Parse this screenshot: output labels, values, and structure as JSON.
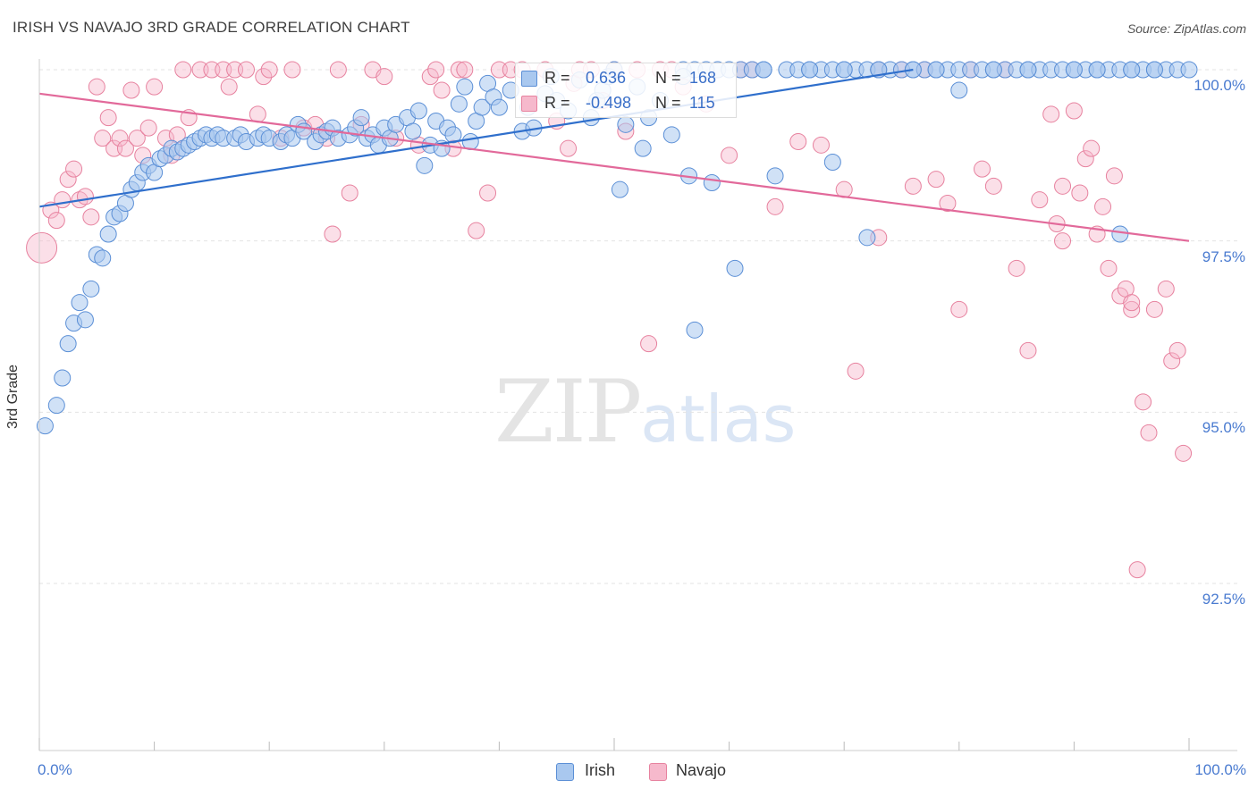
{
  "header": {
    "title": "IRISH VS NAVAJO 3RD GRADE CORRELATION CHART",
    "source": "Source: ZipAtlas.com"
  },
  "watermark": {
    "zip": "ZIP",
    "atlas": "atlas"
  },
  "legend": {
    "r_label": "R =",
    "n_label": "N =",
    "rows": [
      {
        "r": "0.636",
        "n": "168",
        "fill": "#a9c8ef",
        "stroke": "#5b8fd6"
      },
      {
        "r": "-0.498",
        "n": "115",
        "fill": "#f6b9cc",
        "stroke": "#e7829f"
      }
    ]
  },
  "bottom_legend": [
    {
      "label": "Irish",
      "fill": "#a9c8ef",
      "stroke": "#5b8fd6"
    },
    {
      "label": "Navajo",
      "fill": "#f6b9cc",
      "stroke": "#e7829f"
    }
  ],
  "colors": {
    "irish_line": "#2f6fcc",
    "navajo_line": "#e2699a",
    "tick_text": "#4a7bd0"
  },
  "chart_data": {
    "type": "scatter",
    "title": "IRISH VS NAVAJO 3RD GRADE CORRELATION CHART",
    "xlabel": "",
    "ylabel": "3rd Grade",
    "xlim": [
      0,
      100
    ],
    "ylim": [
      90.0,
      100.5
    ],
    "x_tick_labels": [
      "0.0%",
      "100.0%"
    ],
    "y_ticks": [
      {
        "value": 100.0,
        "label": "100.0%"
      },
      {
        "value": 97.5,
        "label": "97.5%"
      },
      {
        "value": 95.0,
        "label": "95.0%"
      },
      {
        "value": 92.5,
        "label": "92.5%"
      }
    ],
    "grid": true,
    "legend_position": "top-center",
    "series": [
      {
        "name": "Irish",
        "r": 0.636,
        "n": 168,
        "trend": {
          "x": [
            0,
            76
          ],
          "y": [
            98.0,
            100.0
          ]
        },
        "points": [
          [
            0.5,
            94.8
          ],
          [
            1.5,
            95.1
          ],
          [
            2,
            95.5
          ],
          [
            2.5,
            96.0
          ],
          [
            3,
            96.3
          ],
          [
            3.5,
            96.6
          ],
          [
            4,
            96.35
          ],
          [
            4.5,
            96.8
          ],
          [
            5,
            97.3
          ],
          [
            5.5,
            97.25
          ],
          [
            6,
            97.6
          ],
          [
            6.5,
            97.85
          ],
          [
            7,
            97.9
          ],
          [
            7.5,
            98.05
          ],
          [
            8,
            98.25
          ],
          [
            8.5,
            98.35
          ],
          [
            9,
            98.5
          ],
          [
            9.5,
            98.6
          ],
          [
            10,
            98.5
          ],
          [
            10.5,
            98.7
          ],
          [
            11,
            98.75
          ],
          [
            11.5,
            98.85
          ],
          [
            12,
            98.8
          ],
          [
            12.5,
            98.85
          ],
          [
            13,
            98.9
          ],
          [
            13.5,
            98.95
          ],
          [
            14,
            99.0
          ],
          [
            14.5,
            99.05
          ],
          [
            15,
            99.0
          ],
          [
            15.5,
            99.05
          ],
          [
            16,
            99.0
          ],
          [
            17,
            99.0
          ],
          [
            17.5,
            99.05
          ],
          [
            18,
            98.95
          ],
          [
            19,
            99.0
          ],
          [
            19.5,
            99.05
          ],
          [
            20,
            99.0
          ],
          [
            21,
            98.95
          ],
          [
            21.5,
            99.05
          ],
          [
            22,
            99.0
          ],
          [
            22.5,
            99.2
          ],
          [
            23,
            99.1
          ],
          [
            24,
            98.95
          ],
          [
            24.5,
            99.05
          ],
          [
            25,
            99.1
          ],
          [
            25.5,
            99.15
          ],
          [
            26,
            99.0
          ],
          [
            27,
            99.05
          ],
          [
            27.5,
            99.15
          ],
          [
            28,
            99.3
          ],
          [
            28.5,
            99.0
          ],
          [
            29,
            99.05
          ],
          [
            29.5,
            98.9
          ],
          [
            30,
            99.15
          ],
          [
            30.5,
            99.0
          ],
          [
            31,
            99.2
          ],
          [
            32,
            99.3
          ],
          [
            32.5,
            99.1
          ],
          [
            33,
            99.4
          ],
          [
            33.5,
            98.6
          ],
          [
            34,
            98.9
          ],
          [
            34.5,
            99.25
          ],
          [
            35,
            98.85
          ],
          [
            35.5,
            99.15
          ],
          [
            36,
            99.05
          ],
          [
            36.5,
            99.5
          ],
          [
            37,
            99.75
          ],
          [
            37.5,
            98.95
          ],
          [
            38,
            99.25
          ],
          [
            38.5,
            99.45
          ],
          [
            39,
            99.8
          ],
          [
            39.5,
            99.6
          ],
          [
            40,
            99.45
          ],
          [
            41,
            99.7
          ],
          [
            42,
            99.1
          ],
          [
            42.5,
            99.45
          ],
          [
            43,
            99.15
          ],
          [
            44,
            99.65
          ],
          [
            44.5,
            99.9
          ],
          [
            45,
            99.55
          ],
          [
            46,
            99.4
          ],
          [
            47,
            99.85
          ],
          [
            48,
            99.3
          ],
          [
            48.5,
            99.55
          ],
          [
            49,
            99.7
          ],
          [
            49.5,
            99.9
          ],
          [
            50,
            100.0
          ],
          [
            50.5,
            98.25
          ],
          [
            51,
            99.2
          ],
          [
            52,
            99.75
          ],
          [
            52.5,
            98.85
          ],
          [
            53,
            99.3
          ],
          [
            54,
            99.55
          ],
          [
            55,
            99.05
          ],
          [
            56,
            100.0
          ],
          [
            56.5,
            98.45
          ],
          [
            57,
            100.0
          ],
          [
            58,
            100.0
          ],
          [
            58.5,
            98.35
          ],
          [
            59,
            100.0
          ],
          [
            60,
            100.0
          ],
          [
            60.5,
            97.1
          ],
          [
            61,
            100.0
          ],
          [
            62,
            100.0
          ],
          [
            63,
            100.0
          ],
          [
            64,
            98.45
          ],
          [
            65,
            100.0
          ],
          [
            66,
            100.0
          ],
          [
            67,
            100.0
          ],
          [
            68,
            100.0
          ],
          [
            69,
            100.0
          ],
          [
            70,
            100.0
          ],
          [
            71,
            100.0
          ],
          [
            72,
            100.0
          ],
          [
            73,
            100.0
          ],
          [
            74,
            100.0
          ],
          [
            75,
            100.0
          ],
          [
            76,
            100.0
          ],
          [
            77,
            100.0
          ],
          [
            78,
            100.0
          ],
          [
            79,
            100.0
          ],
          [
            80,
            100.0
          ],
          [
            81,
            100.0
          ],
          [
            82,
            100.0
          ],
          [
            83,
            100.0
          ],
          [
            84,
            100.0
          ],
          [
            85,
            100.0
          ],
          [
            86,
            100.0
          ],
          [
            87,
            100.0
          ],
          [
            88,
            100.0
          ],
          [
            89,
            100.0
          ],
          [
            90,
            100.0
          ],
          [
            91,
            100.0
          ],
          [
            92,
            100.0
          ],
          [
            93,
            100.0
          ],
          [
            94,
            100.0
          ],
          [
            95,
            100.0
          ],
          [
            96,
            100.0
          ],
          [
            97,
            100.0
          ],
          [
            98,
            100.0
          ],
          [
            99,
            100.0
          ],
          [
            100,
            100.0
          ],
          [
            80,
            99.7
          ],
          [
            94,
            97.6
          ],
          [
            57,
            96.2
          ],
          [
            69,
            98.65
          ],
          [
            72,
            97.55
          ],
          [
            56,
            99.9
          ],
          [
            63,
            100.0
          ],
          [
            67,
            100.0
          ],
          [
            70,
            100.0
          ],
          [
            73,
            100.0
          ],
          [
            76,
            100.0
          ],
          [
            78,
            100.0
          ],
          [
            83,
            100.0
          ],
          [
            86,
            100.0
          ],
          [
            90,
            100.0
          ],
          [
            92,
            100.0
          ],
          [
            95,
            100.0
          ],
          [
            97,
            100.0
          ]
        ]
      },
      {
        "name": "Navajo",
        "r": -0.498,
        "n": 115,
        "trend": {
          "x": [
            0,
            100
          ],
          "y": [
            99.65,
            97.5
          ]
        },
        "points": [
          [
            0.2,
            97.4
          ],
          [
            1,
            97.95
          ],
          [
            1.5,
            97.8
          ],
          [
            2,
            98.1
          ],
          [
            2.5,
            98.4
          ],
          [
            3,
            98.55
          ],
          [
            3.5,
            98.1
          ],
          [
            4,
            98.15
          ],
          [
            4.5,
            97.85
          ],
          [
            5,
            99.75
          ],
          [
            5.5,
            99.0
          ],
          [
            6,
            99.3
          ],
          [
            6.5,
            98.85
          ],
          [
            7,
            99.0
          ],
          [
            7.5,
            98.85
          ],
          [
            8,
            99.7
          ],
          [
            8.5,
            99.0
          ],
          [
            9,
            98.75
          ],
          [
            9.5,
            99.15
          ],
          [
            10,
            99.75
          ],
          [
            11,
            99.0
          ],
          [
            11.5,
            98.75
          ],
          [
            12,
            99.05
          ],
          [
            12.5,
            100.0
          ],
          [
            13,
            99.3
          ],
          [
            14,
            100.0
          ],
          [
            15,
            100.0
          ],
          [
            16,
            100.0
          ],
          [
            16.5,
            99.75
          ],
          [
            17,
            100.0
          ],
          [
            18,
            100.0
          ],
          [
            19,
            99.35
          ],
          [
            19.5,
            99.9
          ],
          [
            20,
            100.0
          ],
          [
            21,
            99.0
          ],
          [
            22,
            100.0
          ],
          [
            23,
            99.15
          ],
          [
            24,
            99.2
          ],
          [
            25,
            99.0
          ],
          [
            25.5,
            97.6
          ],
          [
            26,
            100.0
          ],
          [
            27,
            98.2
          ],
          [
            28,
            99.2
          ],
          [
            29,
            100.0
          ],
          [
            30,
            99.9
          ],
          [
            31,
            99.0
          ],
          [
            33,
            98.9
          ],
          [
            34,
            99.9
          ],
          [
            34.5,
            100.0
          ],
          [
            35,
            99.7
          ],
          [
            36,
            98.85
          ],
          [
            36.5,
            100.0
          ],
          [
            37,
            100.0
          ],
          [
            38,
            97.65
          ],
          [
            39,
            98.2
          ],
          [
            40,
            100.0
          ],
          [
            41,
            100.0
          ],
          [
            42,
            100.0
          ],
          [
            44,
            100.0
          ],
          [
            45,
            99.25
          ],
          [
            46,
            98.85
          ],
          [
            46.5,
            99.8
          ],
          [
            47,
            100.0
          ],
          [
            48,
            100.0
          ],
          [
            49,
            99.55
          ],
          [
            50,
            100.0
          ],
          [
            51,
            99.1
          ],
          [
            52,
            100.0
          ],
          [
            53,
            96.0
          ],
          [
            54,
            100.0
          ],
          [
            55,
            100.0
          ],
          [
            56,
            99.75
          ],
          [
            58,
            99.5
          ],
          [
            60,
            98.75
          ],
          [
            61,
            100.0
          ],
          [
            62,
            100.0
          ],
          [
            64,
            98.0
          ],
          [
            66,
            98.95
          ],
          [
            68,
            98.9
          ],
          [
            70,
            98.25
          ],
          [
            71,
            95.6
          ],
          [
            73,
            100.0
          ],
          [
            75,
            100.0
          ],
          [
            76,
            98.3
          ],
          [
            77,
            100.0
          ],
          [
            78,
            98.4
          ],
          [
            79,
            98.05
          ],
          [
            80,
            96.5
          ],
          [
            81,
            100.0
          ],
          [
            82,
            98.55
          ],
          [
            83,
            98.3
          ],
          [
            84,
            100.0
          ],
          [
            85,
            97.1
          ],
          [
            86,
            95.9
          ],
          [
            87,
            98.1
          ],
          [
            88,
            99.35
          ],
          [
            88.5,
            97.75
          ],
          [
            89,
            98.3
          ],
          [
            90,
            99.4
          ],
          [
            90.5,
            98.2
          ],
          [
            91,
            98.7
          ],
          [
            91.5,
            98.85
          ],
          [
            92,
            97.6
          ],
          [
            92.5,
            98.0
          ],
          [
            93,
            97.1
          ],
          [
            93.5,
            98.45
          ],
          [
            94,
            96.7
          ],
          [
            94.5,
            96.8
          ],
          [
            95,
            96.5
          ],
          [
            95.5,
            92.7
          ],
          [
            96,
            95.15
          ],
          [
            96.5,
            94.7
          ],
          [
            97,
            96.5
          ],
          [
            98,
            96.8
          ],
          [
            98.5,
            95.75
          ],
          [
            99,
            95.9
          ],
          [
            99.5,
            94.4
          ],
          [
            73,
            97.55
          ],
          [
            89,
            97.5
          ],
          [
            95,
            96.6
          ]
        ]
      }
    ]
  }
}
